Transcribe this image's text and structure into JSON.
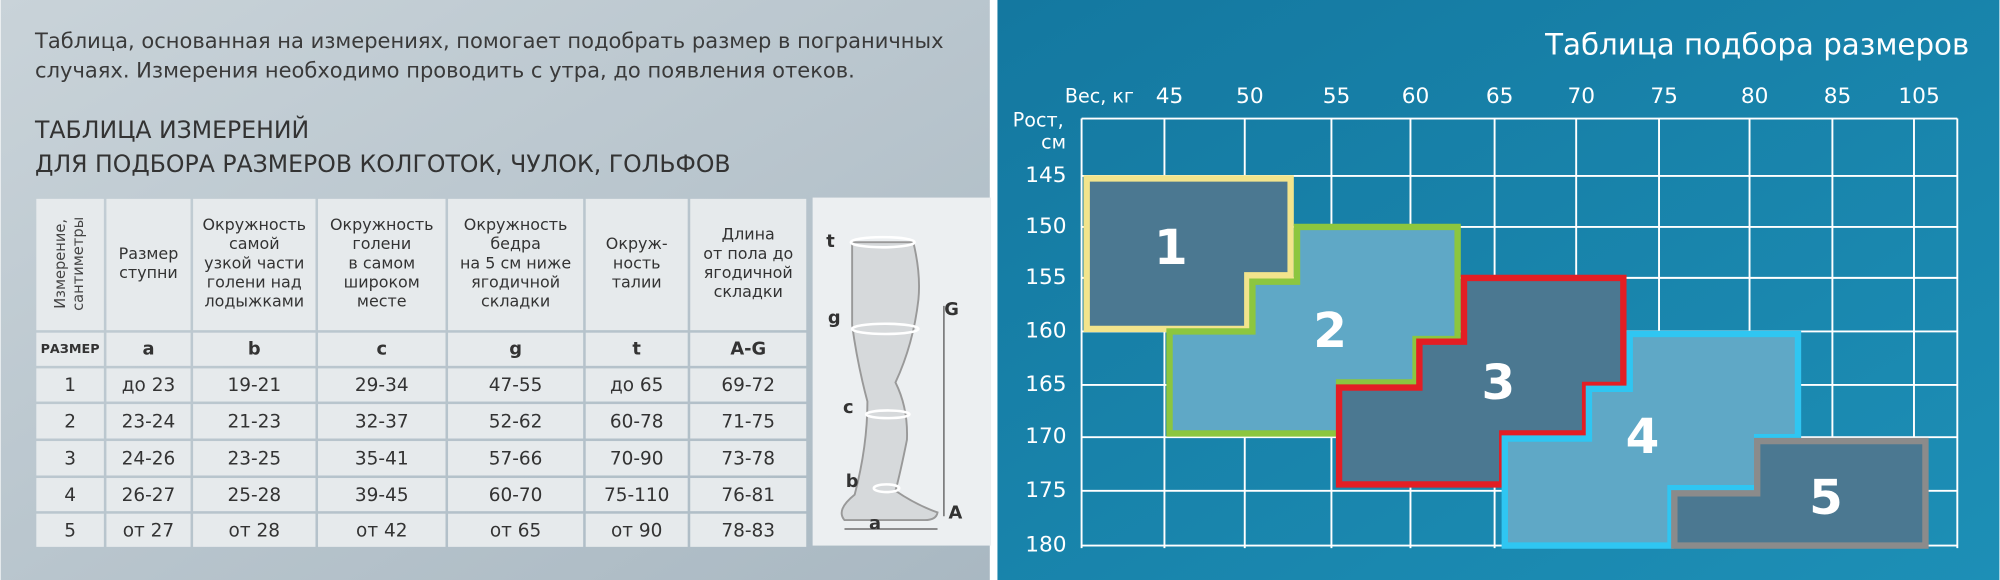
{
  "intro": [
    "Таблица, основанная на измерениях, помогает подобрать размер в пограничных",
    "случаях. Измерения необходимо проводить с утра, до появления отеков."
  ],
  "table_title": [
    "ТАБЛИЦА ИЗМЕРЕНИЙ",
    "ДЛЯ ПОДБОРА РАЗМЕРОВ КОЛГОТОК, ЧУЛОК, ГОЛЬФОВ"
  ],
  "table": {
    "headers": [
      [
        "Измерение,",
        "сантиметры"
      ],
      [
        "Размер",
        "ступни"
      ],
      [
        "Окружность",
        "самой",
        "узкой части",
        "голени над",
        "лодыжками"
      ],
      [
        "Окружность",
        "голени",
        "в самом",
        "широком",
        "месте"
      ],
      [
        "Окружность",
        "бедра",
        "на 5 см ниже",
        "ягодичной",
        "складки"
      ],
      [
        "Окруж-",
        "ность",
        "талии"
      ],
      [
        "Длина",
        "от пола до",
        "ягодичной",
        "складки"
      ]
    ],
    "codes": [
      "РАЗМЕР",
      "a",
      "b",
      "c",
      "g",
      "t",
      "A-G"
    ],
    "rows": [
      [
        "1",
        "до 23",
        "19-21",
        "29-34",
        "47-55",
        "до 65",
        "69-72"
      ],
      [
        "2",
        "23-24",
        "21-23",
        "32-37",
        "52-62",
        "60-78",
        "71-75"
      ],
      [
        "3",
        "24-26",
        "23-25",
        "35-41",
        "57-66",
        "70-90",
        "73-78"
      ],
      [
        "4",
        "26-27",
        "25-28",
        "39-45",
        "60-70",
        "75-110",
        "76-81"
      ],
      [
        "5",
        "от 27",
        "от 28",
        "от 42",
        "от 65",
        "от 90",
        "78-83"
      ]
    ]
  },
  "leg_labels": [
    "t",
    "g",
    "c",
    "b",
    "a",
    "G",
    "A"
  ],
  "size_chart": {
    "title": "Таблица подбора размеров",
    "weight_label": "Вес, кг",
    "weights": [
      "45",
      "50",
      "55",
      "60",
      "65",
      "70",
      "75",
      "80",
      "85",
      "105"
    ],
    "height_label": [
      "Рост,",
      "см"
    ],
    "heights": [
      "145",
      "150",
      "155",
      "160",
      "165",
      "170",
      "175",
      "180"
    ],
    "zones": [
      "1",
      "2",
      "3",
      "4",
      "5"
    ]
  }
}
